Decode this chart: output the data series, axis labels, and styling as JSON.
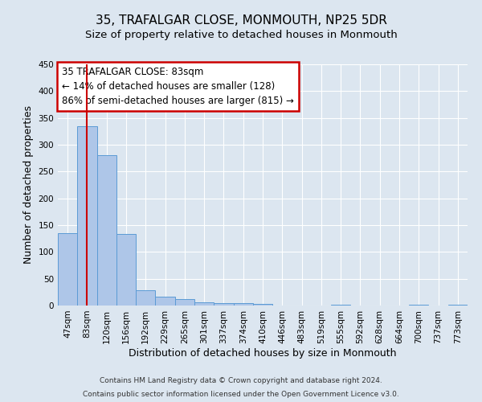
{
  "title": "35, TRAFALGAR CLOSE, MONMOUTH, NP25 5DR",
  "subtitle": "Size of property relative to detached houses in Monmouth",
  "xlabel": "Distribution of detached houses by size in Monmouth",
  "ylabel": "Number of detached properties",
  "categories": [
    "47sqm",
    "83sqm",
    "120sqm",
    "156sqm",
    "192sqm",
    "229sqm",
    "265sqm",
    "301sqm",
    "337sqm",
    "374sqm",
    "410sqm",
    "446sqm",
    "483sqm",
    "519sqm",
    "555sqm",
    "592sqm",
    "628sqm",
    "664sqm",
    "700sqm",
    "737sqm",
    "773sqm"
  ],
  "values": [
    135,
    335,
    280,
    133,
    28,
    17,
    12,
    6,
    5,
    5,
    3,
    0,
    0,
    0,
    1,
    0,
    0,
    0,
    1,
    0,
    1
  ],
  "bar_color": "#aec6e8",
  "bar_edge_color": "#5b9bd5",
  "highlight_bar_index": 1,
  "highlight_line_color": "#cc0000",
  "ylim": [
    0,
    450
  ],
  "yticks": [
    0,
    50,
    100,
    150,
    200,
    250,
    300,
    350,
    400,
    450
  ],
  "annotation_text_line1": "35 TRAFALGAR CLOSE: 83sqm",
  "annotation_text_line2": "← 14% of detached houses are smaller (128)",
  "annotation_text_line3": "86% of semi-detached houses are larger (815) →",
  "annotation_box_color": "#cc0000",
  "bg_color": "#dce6f0",
  "footer_line1": "Contains HM Land Registry data © Crown copyright and database right 2024.",
  "footer_line2": "Contains public sector information licensed under the Open Government Licence v3.0.",
  "title_fontsize": 11,
  "subtitle_fontsize": 9.5,
  "axis_label_fontsize": 9,
  "tick_fontsize": 7.5,
  "annotation_fontsize": 8.5,
  "footer_fontsize": 6.5
}
